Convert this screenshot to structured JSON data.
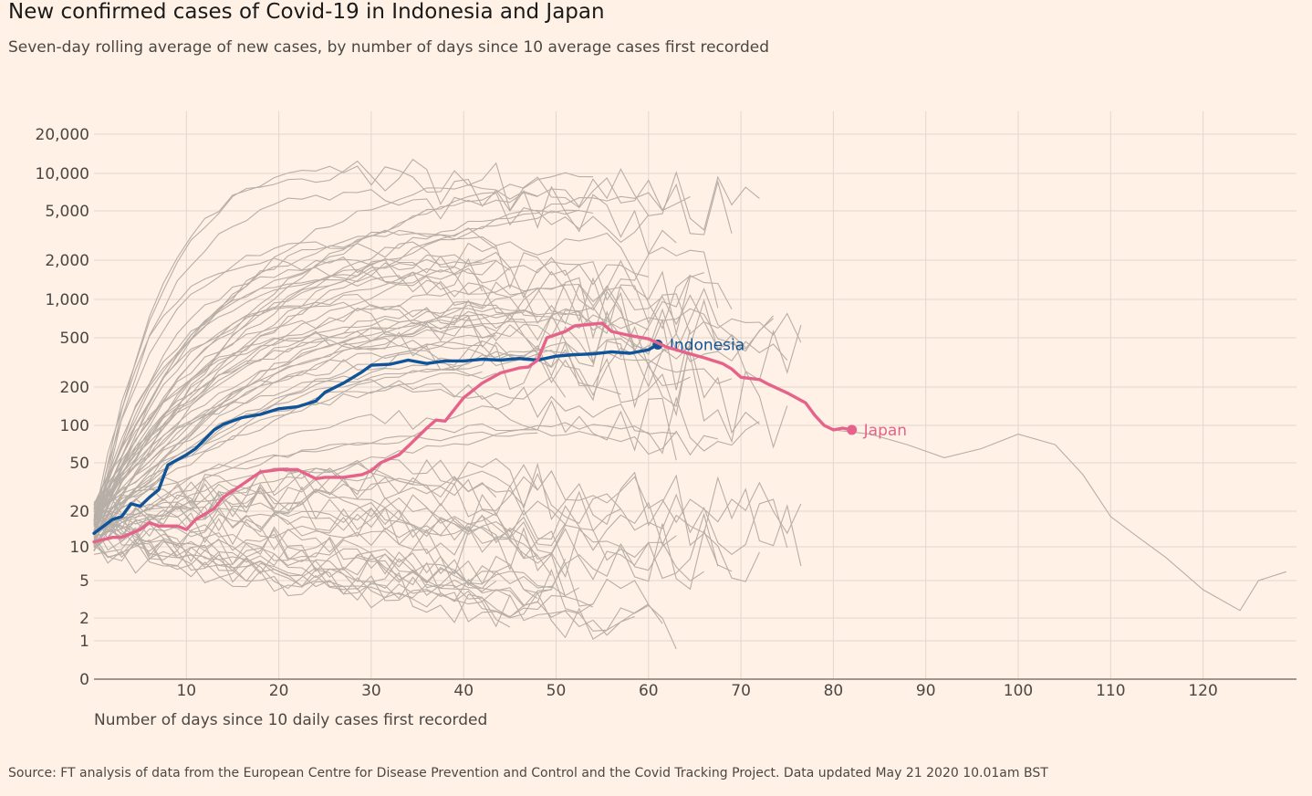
{
  "title": "New confirmed cases of Covid-19 in Indonesia and Japan",
  "subtitle": "Seven-day rolling average of new cases, by number of days since 10 average cases first recorded",
  "source": "Source: FT analysis of data from the European Centre for Disease Prevention and Control and the Covid Tracking Project. Data updated May 21 2020 10.01am BST",
  "colors": {
    "background": "#FFF1E5",
    "grid": "#E1D7CE",
    "context": "#B7AEA7",
    "indonesia": "#0F5499",
    "japan": "#E5638B"
  },
  "chart_data": {
    "type": "line",
    "xlabel": "Number of days since 10 daily cases first recorded",
    "ylabel": "",
    "yscale": "log",
    "xlim": [
      0,
      130
    ],
    "xticks": [
      10,
      20,
      30,
      40,
      50,
      60,
      70,
      80,
      90,
      100,
      110,
      120
    ],
    "yticks": [
      0,
      1,
      2,
      5,
      10,
      20,
      50,
      100,
      200,
      500,
      1000,
      2000,
      5000,
      10000,
      20000
    ],
    "ytick_labels": [
      "0",
      "1",
      "2",
      "5",
      "10",
      "20",
      "50",
      "100",
      "200",
      "500",
      "1,000",
      "2,000",
      "5,000",
      "10,000",
      "20,000"
    ],
    "grid": true,
    "series": [
      {
        "name": "Indonesia",
        "color": "#0F5499",
        "x": [
          0,
          2,
          3,
          4,
          5,
          6,
          7,
          8,
          10,
          11,
          13,
          14,
          16,
          18,
          20,
          22,
          24,
          25,
          27,
          29,
          30,
          32,
          34,
          36,
          38,
          40,
          42,
          44,
          46,
          48,
          50,
          52,
          54,
          56,
          58,
          60,
          61
        ],
        "y": [
          13,
          17,
          18,
          23,
          22,
          26,
          30,
          48,
          58,
          65,
          92,
          102,
          115,
          122,
          135,
          140,
          155,
          182,
          215,
          265,
          300,
          305,
          330,
          310,
          325,
          325,
          335,
          330,
          340,
          330,
          355,
          365,
          370,
          385,
          375,
          400,
          440
        ]
      },
      {
        "name": "Japan",
        "color": "#E5638B",
        "x": [
          0,
          2,
          3,
          5,
          6,
          7,
          9,
          10,
          11,
          13,
          14,
          16,
          18,
          20,
          22,
          24,
          25,
          27,
          29,
          30,
          31,
          33,
          34,
          36,
          37,
          38,
          40,
          42,
          44,
          46,
          47,
          48,
          49,
          51,
          52,
          54,
          55,
          56,
          58,
          60,
          62,
          64,
          66,
          68,
          69,
          70,
          72,
          73,
          75,
          77,
          78,
          79,
          80,
          81,
          82
        ],
        "y": [
          11,
          12,
          12,
          14,
          16,
          15,
          15,
          14,
          17,
          21,
          26,
          33,
          42,
          44,
          44,
          37,
          38,
          38,
          40,
          43,
          50,
          58,
          68,
          95,
          110,
          108,
          165,
          215,
          260,
          285,
          290,
          330,
          500,
          560,
          620,
          640,
          650,
          560,
          520,
          490,
          420,
          380,
          345,
          310,
          280,
          240,
          230,
          210,
          180,
          150,
          120,
          100,
          92,
          95,
          92
        ]
      }
    ],
    "annotations": [
      "Indonesia",
      "Japan"
    ]
  }
}
